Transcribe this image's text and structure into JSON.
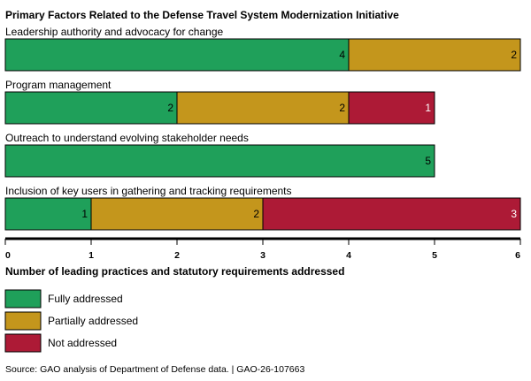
{
  "chart_data": {
    "type": "bar",
    "orientation": "horizontal",
    "stacked": true,
    "title": "Primary Factors Related to the Defense Travel System Modernization Initiative",
    "xlabel": "Number of leading practices and statutory requirements addressed",
    "xlim": [
      0,
      6
    ],
    "xticks": [
      "0",
      "1",
      "2",
      "3",
      "4",
      "5",
      "6"
    ],
    "categories": [
      "Leadership authority and advocacy for change",
      "Program management",
      "Outreach to understand evolving stakeholder needs",
      "Inclusion of key users in gathering and tracking requirements"
    ],
    "series": [
      {
        "name": "Fully addressed",
        "color": "#1fa05a",
        "values": [
          4,
          2,
          5,
          1
        ]
      },
      {
        "name": "Partially addressed",
        "color": "#c4961c",
        "values": [
          2,
          2,
          0,
          2
        ]
      },
      {
        "name": "Not addressed",
        "color": "#ad1a36",
        "values": [
          0,
          1,
          0,
          3
        ]
      }
    ],
    "label_colors": {
      "Fully addressed": "#000000",
      "Partially addressed": "#000000",
      "Not addressed": "#ffffff"
    },
    "legend_position": "bottom-left",
    "grid": false
  },
  "source": "Source: GAO analysis of Department of Defense data.  |  GAO-26-107663"
}
